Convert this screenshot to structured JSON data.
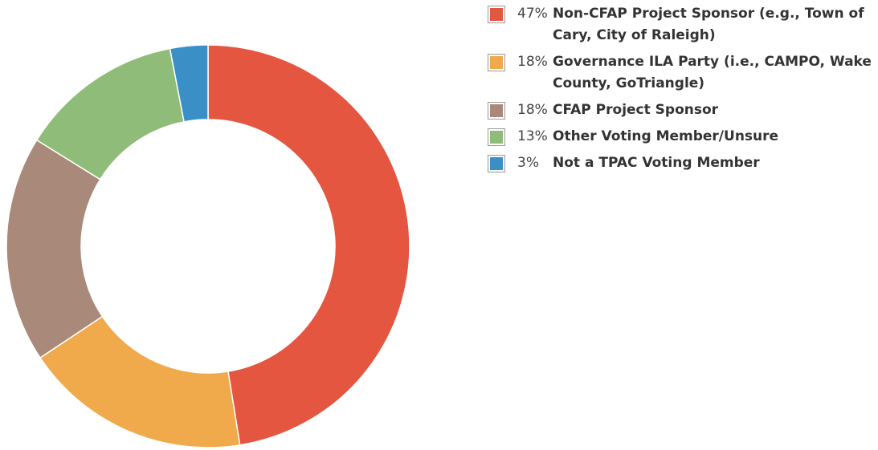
{
  "chart_data": {
    "type": "donut",
    "categories": [
      "Non-CFAP Project Sponsor (e.g., Town of Cary, City of Raleigh)",
      "Governance ILA Party (i.e., CAMPO, Wake County, GoTriangle)",
      "CFAP Project Sponsor",
      "Other Voting Member/Unsure",
      "Not a TPAC Voting Member"
    ],
    "values": [
      47,
      18,
      18,
      13,
      3
    ],
    "value_labels": [
      "47%",
      "18%",
      "18%",
      "13%",
      "3%"
    ],
    "colors": [
      "#e4563f",
      "#f0a94b",
      "#a98a7a",
      "#8fbc78",
      "#3a8fc7"
    ],
    "legend": "right"
  }
}
